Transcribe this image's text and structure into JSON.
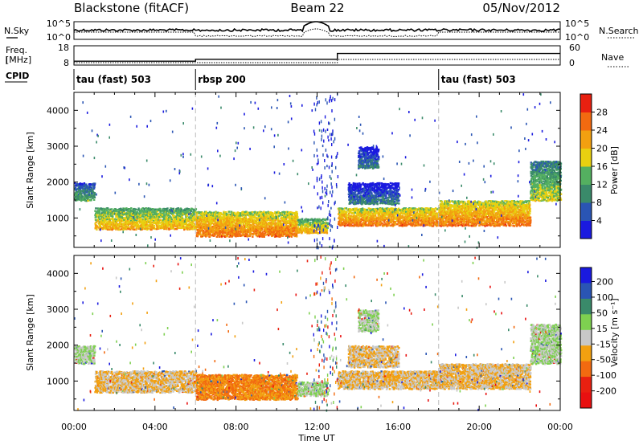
{
  "header": {
    "radar": "Blackstone (fitACF)",
    "beam": "Beam 22",
    "date": "05/Nov/2012"
  },
  "strips": {
    "nsky_label": "N.Sky",
    "nsearch_label": "N.Search",
    "freq_label_1": "Freq.",
    "freq_label_2": "[MHz]",
    "nave_label": "Nave",
    "cpid_label": "CPID",
    "noise_ticks_left": [
      "10^5",
      "10^0"
    ],
    "noise_ticks_right": [
      "10^5",
      "10^0"
    ],
    "freq_ticks_left": [
      "18",
      "8"
    ],
    "nave_ticks_right": [
      "60",
      "0"
    ]
  },
  "cpid": [
    {
      "label": "tau (fast) 503",
      "start_hour": 0
    },
    {
      "label": "rbsp 200",
      "start_hour": 6
    },
    {
      "label": "tau (fast) 503",
      "start_hour": 18
    }
  ],
  "axes": {
    "ylabel": "Slant Range [km]",
    "xlabel": "Time UT",
    "y_ticks": [
      "1000",
      "2000",
      "3000",
      "4000"
    ],
    "x_ticks": [
      "00:00",
      "04:00",
      "08:00",
      "12:00",
      "16:00",
      "20:00",
      "00:00"
    ]
  },
  "colorbars": {
    "power": {
      "label": "Power [dB]",
      "ticks": [
        "4",
        "8",
        "12",
        "16",
        "20",
        "24",
        "28"
      ],
      "colors": [
        "#1a1adf",
        "#2a55b4",
        "#3a8a6a",
        "#54b060",
        "#e8d010",
        "#f2a010",
        "#f26a10",
        "#e82010"
      ]
    },
    "velocity": {
      "label": "Velocity [m s⁻¹]",
      "ticks": [
        "200",
        "100",
        "50",
        "15",
        "-15",
        "-50",
        "-100",
        "-200"
      ],
      "colors": [
        "#1a1adf",
        "#2a55b4",
        "#3a8a6a",
        "#7ed050",
        "#c8c8c8",
        "#f2a010",
        "#f26a10",
        "#e82010",
        "#e81010"
      ]
    }
  },
  "chart_data": {
    "type": "heatmap",
    "x_range_hours": [
      0,
      24
    ],
    "y_range_km": [
      180,
      4500
    ],
    "panels": [
      "power",
      "velocity"
    ],
    "frequency_mhz": [
      {
        "hour_start": 0,
        "hour_end": 6,
        "value": 10
      },
      {
        "hour_start": 6,
        "hour_end": 13,
        "value": 11
      },
      {
        "hour_start": 13,
        "hour_end": 24,
        "value": 14
      }
    ],
    "echo_bands": [
      {
        "hour_start": 0.0,
        "hour_end": 1.0,
        "range_min_km": 1500,
        "range_max_km": 2000,
        "power_db": 12,
        "velocity": 15
      },
      {
        "hour_start": 1.0,
        "hour_end": 6.0,
        "range_min_km": 700,
        "range_max_km": 1300,
        "power_db": 20,
        "velocity": -15
      },
      {
        "hour_start": 6.0,
        "hour_end": 11.0,
        "range_min_km": 500,
        "range_max_km": 1200,
        "power_db": 24,
        "velocity": -50
      },
      {
        "hour_start": 11.0,
        "hour_end": 12.5,
        "range_min_km": 600,
        "range_max_km": 1000,
        "power_db": 20,
        "velocity": 15
      },
      {
        "hour_start": 13.0,
        "hour_end": 18.0,
        "range_min_km": 800,
        "range_max_km": 1300,
        "power_db": 24,
        "velocity": -15
      },
      {
        "hour_start": 13.5,
        "hour_end": 16.0,
        "range_min_km": 1400,
        "range_max_km": 2000,
        "power_db": 8,
        "velocity": -15
      },
      {
        "hour_start": 14.0,
        "hour_end": 15.0,
        "range_min_km": 2400,
        "range_max_km": 3000,
        "power_db": 8,
        "velocity": 15
      },
      {
        "hour_start": 18.0,
        "hour_end": 22.5,
        "range_min_km": 800,
        "range_max_km": 1500,
        "power_db": 24,
        "velocity": -15
      },
      {
        "hour_start": 22.5,
        "hour_end": 24.0,
        "range_min_km": 1500,
        "range_max_km": 2600,
        "power_db": 16,
        "velocity": 15
      }
    ]
  }
}
